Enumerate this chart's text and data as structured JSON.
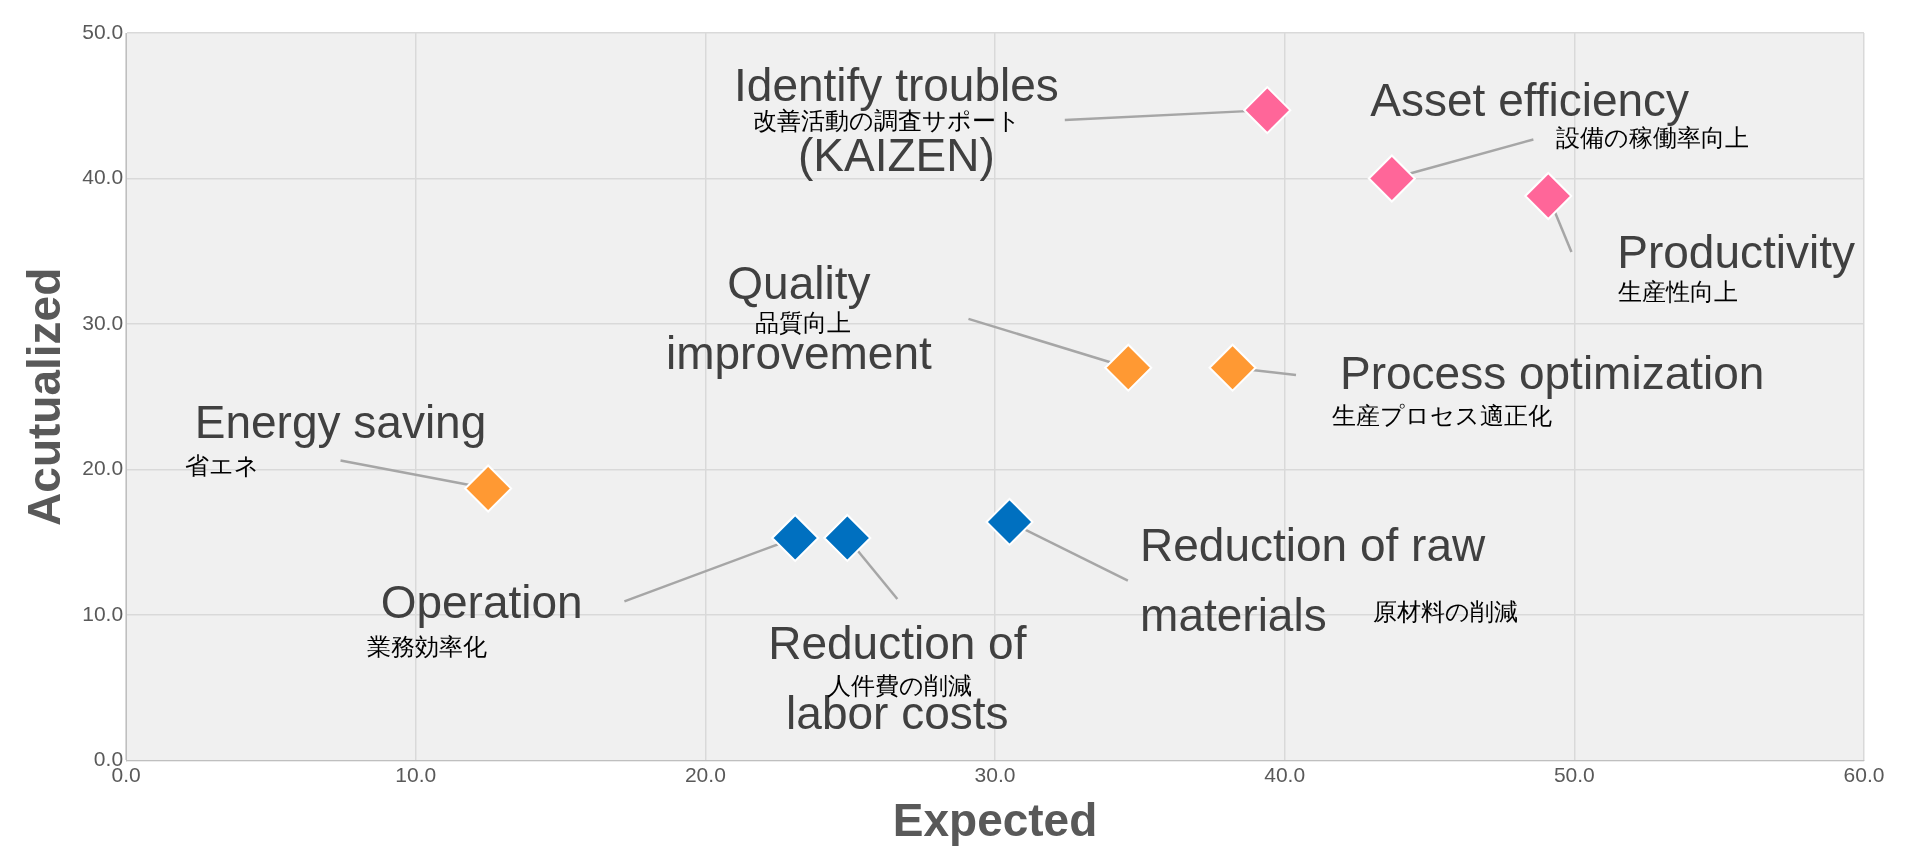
{
  "chart_data": {
    "type": "scatter",
    "xlabel": "Expected",
    "ylabel": "Acutualized",
    "xlim": [
      0,
      60
    ],
    "xticks": [
      {
        "value": 0,
        "label": "0.0"
      },
      {
        "value": 10,
        "label": "10.0"
      },
      {
        "value": 20,
        "label": "20.0"
      },
      {
        "value": 30,
        "label": "30.0"
      },
      {
        "value": 40,
        "label": "40.0"
      },
      {
        "value": 50,
        "label": "50.0"
      },
      {
        "value": 60,
        "label": "60.0"
      }
    ],
    "ylim": [
      0,
      50
    ],
    "yticks": [
      {
        "value": 0,
        "label": "0.0"
      },
      {
        "value": 10,
        "label": "10.0"
      },
      {
        "value": 20,
        "label": "20.0"
      },
      {
        "value": 30,
        "label": "30.0"
      },
      {
        "value": 40,
        "label": "40.0"
      },
      {
        "value": 50,
        "label": "50.0"
      }
    ],
    "grid": true,
    "legend": false,
    "marker": "diamond",
    "series": [
      {
        "color": "#ff6699",
        "x": [
          39.4,
          43.7,
          49.1
        ],
        "values": [
          44.7,
          40.0,
          38.8
        ]
      },
      {
        "color": "#ff9933",
        "x": [
          34.6,
          38.2,
          12.5
        ],
        "values": [
          27.0,
          27.0,
          18.7
        ]
      },
      {
        "color": "#0070c0",
        "x": [
          23.1,
          24.9,
          30.5
        ],
        "values": [
          15.3,
          15.3,
          16.4
        ]
      }
    ],
    "annotations": [
      {
        "text": "Identify troubles\n(KAIZEN)",
        "x": 39.4,
        "y": 44.7
      },
      "改善活動の調査サポート",
      {
        "text": "Asset efficiency",
        "x": 43.7,
        "y": 40.0
      },
      "設備の稼働率向上",
      {
        "text": "Productivity",
        "x": 49.1,
        "y": 38.8
      },
      "生産性向上",
      {
        "text": "Quality\nimprovement",
        "x": 34.6,
        "y": 27.0
      },
      "品質向上",
      {
        "text": "Process optimization",
        "x": 38.2,
        "y": 27.0
      },
      "生産プロセス適正化",
      {
        "text": "Energy saving",
        "x": 12.5,
        "y": 18.7
      },
      "省エネ",
      {
        "text": "Operation",
        "x": 23.1,
        "y": 15.3
      },
      "業務効率化",
      {
        "text": "Reduction of\nlabor costs",
        "x": 24.9,
        "y": 15.3
      },
      "人件費の削減",
      {
        "text": "Reduction of raw\nmaterials",
        "x": 30.5,
        "y": 16.4
      },
      "原材料の削減"
    ]
  }
}
